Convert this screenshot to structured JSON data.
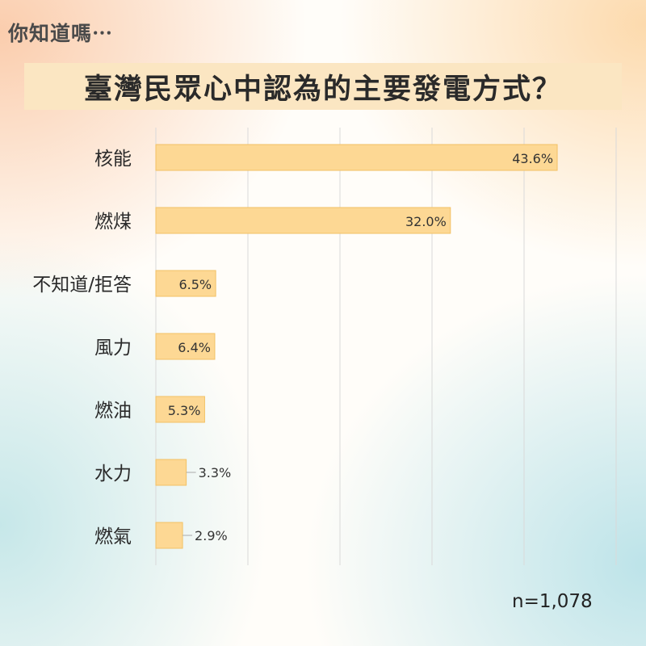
{
  "kicker": "你知道嗎⋯",
  "title": "臺灣民眾心中認為的主要發電方式？",
  "sample_note": "n=1,078",
  "colors": {
    "bar_fill": "#fdd894",
    "bar_stroke": "#f2c165",
    "grid": "#d9d9d9",
    "title_bg": "#fbe6c2"
  },
  "chart_data": {
    "type": "bar",
    "orientation": "horizontal",
    "categories": [
      "核能",
      "燃煤",
      "不知道/拒答",
      "風力",
      "燃油",
      "水力",
      "燃氣"
    ],
    "values": [
      43.6,
      32.0,
      6.5,
      6.4,
      5.3,
      3.3,
      2.9
    ],
    "value_labels": [
      "43.6%",
      "32.0%",
      "6.5%",
      "6.4%",
      "5.3%",
      "3.3%",
      "2.9%"
    ],
    "xlim": [
      0,
      50
    ],
    "grid": true
  }
}
